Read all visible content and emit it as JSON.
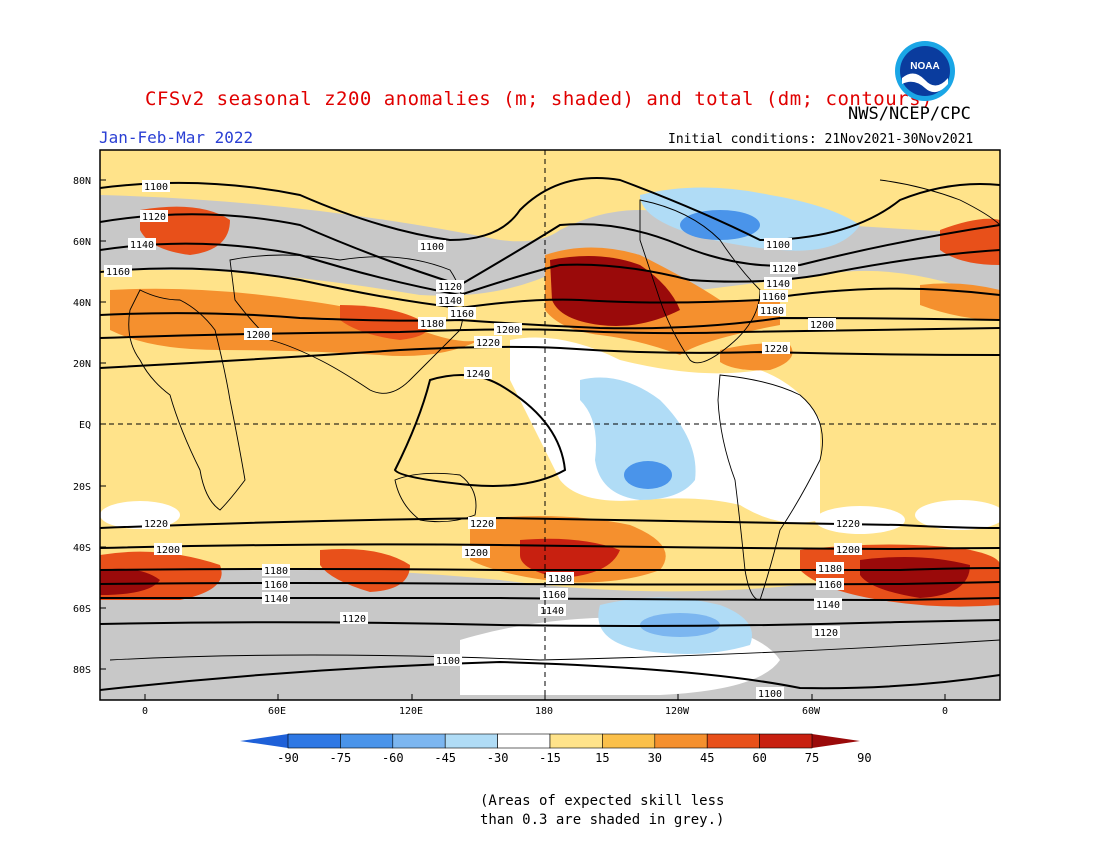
{
  "header": {
    "title": "CFSv2 seasonal z200 anomalies (m; shaded) and total (dm; contours)",
    "agency": "NWS/NCEP/CPC",
    "season": "Jan-Feb-Mar 2022",
    "initial_conditions": "Initial conditions: 21Nov2021-30Nov2021",
    "logo_text": "NOAA",
    "logo_icon": "noaa-logo-icon"
  },
  "map": {
    "lat_labels": [
      "80N",
      "60N",
      "40N",
      "20N",
      "EQ",
      "20S",
      "40S",
      "60S",
      "80S"
    ],
    "lon_labels": [
      "0",
      "60E",
      "120E",
      "180",
      "120W",
      "60W",
      "0"
    ],
    "contour_labels": {
      "c1100": "1100",
      "c1120": "1120",
      "c1140": "1140",
      "c1160": "1160",
      "c1180": "1180",
      "c1200": "1200",
      "c1220": "1220",
      "c1240": "1240"
    }
  },
  "colorbar": {
    "labels": [
      "-90",
      "-75",
      "-60",
      "-45",
      "-30",
      "-15",
      "15",
      "30",
      "45",
      "60",
      "75",
      "90"
    ],
    "colors": [
      "#1e60d8",
      "#2f78e4",
      "#4a94ea",
      "#7cb6f0",
      "#b0dcf6",
      "#ffffff",
      "#ffe38a",
      "#fbc04a",
      "#f5902e",
      "#e8501a",
      "#c82010",
      "#9a0a0a"
    ],
    "skill_mask_color": "#c8c8c8"
  },
  "footnote": {
    "line1": "(Areas of expected skill less",
    "line2": "than 0.3 are shaded in grey.)"
  }
}
